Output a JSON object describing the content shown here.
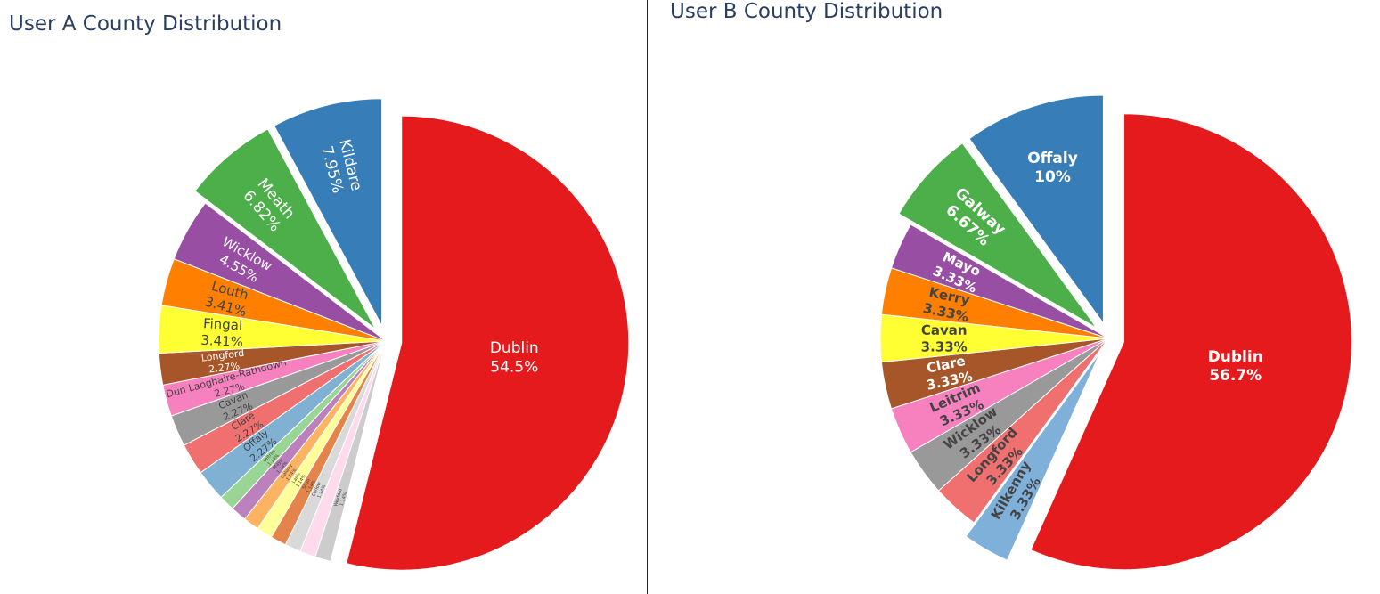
{
  "chart_data": [
    {
      "type": "pie",
      "title": "User A County Distribution",
      "slices": [
        {
          "label": "Dublin",
          "value": 54.5,
          "text": "54.5%",
          "color": "#e41a1c",
          "pulled": true
        },
        {
          "label": "Wexford",
          "value": 1.14,
          "text": "1.14%",
          "color": "#cccccc"
        },
        {
          "label": "",
          "value": 1.14,
          "text": "",
          "color": "#fddaec"
        },
        {
          "label": "Carlow",
          "value": 1.14,
          "text": "1.14%",
          "color": "#d9d9d9"
        },
        {
          "label": "Sligo",
          "value": 1.14,
          "text": "1.14%",
          "color": "#e5844a"
        },
        {
          "label": "Laois",
          "value": 1.14,
          "text": "1.14%",
          "color": "#ffff99"
        },
        {
          "label": "Galway",
          "value": 1.14,
          "text": "1.14%",
          "color": "#fdb462"
        },
        {
          "label": "Mayo",
          "value": 1.14,
          "text": "1.14%",
          "color": "#bc80bd"
        },
        {
          "label": "Leitrim",
          "value": 1.14,
          "text": "1.14%",
          "color": "#99d594"
        },
        {
          "label": "Offaly",
          "value": 2.27,
          "text": "2.27%",
          "color": "#80b1d3"
        },
        {
          "label": "Clare",
          "value": 2.27,
          "text": "2.27%",
          "color": "#f07070"
        },
        {
          "label": "Cavan",
          "value": 2.27,
          "text": "2.27%",
          "color": "#999999"
        },
        {
          "label": "Dún Laoghaire-Rathdown",
          "value": 2.27,
          "text": "2.27%",
          "color": "#f781bf"
        },
        {
          "label": "Longford",
          "value": 2.27,
          "text": "2.27%",
          "color": "#a65628"
        },
        {
          "label": "Fingal",
          "value": 3.41,
          "text": "3.41%",
          "color": "#ffff33"
        },
        {
          "label": "Louth",
          "value": 3.41,
          "text": "3.41%",
          "color": "#ff7f00"
        },
        {
          "label": "Wicklow",
          "value": 4.55,
          "text": "4.55%",
          "color": "#984ea3"
        },
        {
          "label": "Meath",
          "value": 6.82,
          "text": "6.82%",
          "color": "#4daf4a",
          "pulled": true
        },
        {
          "label": "Kildare",
          "value": 7.95,
          "text": "7.95%",
          "color": "#377eb8",
          "pulled": true
        }
      ]
    },
    {
      "type": "pie",
      "title": "User B County Distribution",
      "slices": [
        {
          "label": "Dublin",
          "value": 56.7,
          "text": "56.7%",
          "color": "#e41a1c",
          "pulled": true
        },
        {
          "label": "Kilkenny",
          "value": 3.33,
          "text": "3.33%",
          "color": "#7fb0d9",
          "pulled": true
        },
        {
          "label": "Longford",
          "value": 3.33,
          "text": "3.33%",
          "color": "#f07070"
        },
        {
          "label": "Wicklow",
          "value": 3.33,
          "text": "3.33%",
          "color": "#999999"
        },
        {
          "label": "Leitrim",
          "value": 3.33,
          "text": "3.33%",
          "color": "#f781bf"
        },
        {
          "label": "Clare",
          "value": 3.33,
          "text": "3.33%",
          "color": "#a65628"
        },
        {
          "label": "Cavan",
          "value": 3.33,
          "text": "3.33%",
          "color": "#ffff33"
        },
        {
          "label": "Kerry",
          "value": 3.33,
          "text": "3.33%",
          "color": "#ff7f00"
        },
        {
          "label": "Mayo",
          "value": 3.33,
          "text": "3.33%",
          "color": "#984ea3"
        },
        {
          "label": "Galway",
          "value": 6.67,
          "text": "6.67%",
          "color": "#4daf4a",
          "pulled": true
        },
        {
          "label": "Offaly",
          "value": 10,
          "text": "10%",
          "color": "#377eb8",
          "pulled": true
        }
      ]
    }
  ]
}
